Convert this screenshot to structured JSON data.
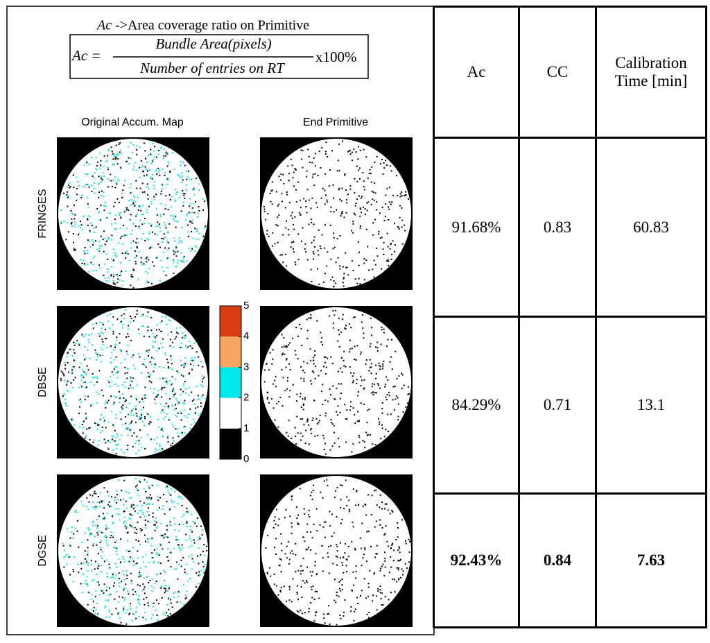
{
  "formula": {
    "caption_symbol": "Ac",
    "caption": "->Area coverage ratio on Primitive",
    "lhs": "Ac =",
    "numerator": "Bundle Area(pixels)",
    "denominator": "Number of entries on RT",
    "factor": "x100%"
  },
  "column_labels": [
    "Original Accum. Map",
    "End Primitive"
  ],
  "row_labels": [
    "FRINGES",
    "DBSE",
    "DGSE"
  ],
  "colorbar": {
    "ticks": [
      0,
      1,
      2,
      3,
      4,
      5
    ],
    "colors": [
      "#000000",
      "#ffffff",
      "#00e8ec",
      "#f5a560",
      "#d83c10"
    ]
  },
  "table": {
    "header": [
      "Ac",
      "CC",
      "Calibration Time [min]"
    ],
    "rows": [
      [
        "91.68%",
        "0.83",
        "60.83"
      ],
      [
        "84.29%",
        "0.71",
        "13.1"
      ],
      [
        "92.43%",
        "0.84",
        "7.63"
      ]
    ]
  }
}
